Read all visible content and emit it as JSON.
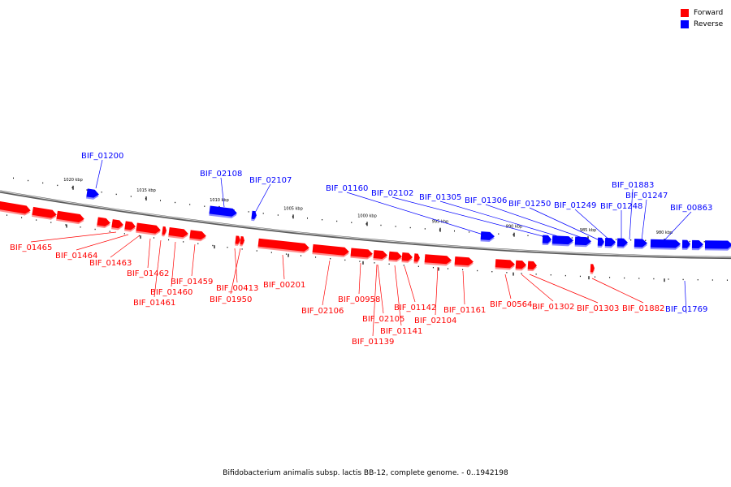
{
  "legend": {
    "items": [
      {
        "label": "Forward",
        "color": "#ff0000"
      },
      {
        "label": "Reverse",
        "color": "#0000ff"
      }
    ]
  },
  "caption": "Bifidobacterium animalis subsp. lactis BB-12, complete genome. - 0..1942198",
  "scale_labels": [
    "1020 kbp",
    "1015 kbp",
    "1010 kbp",
    "1005 kbp",
    "1000 kbp",
    "995 kbp",
    "990 kbp",
    "985 kbp",
    "980 kbp"
  ],
  "colors": {
    "forward": "#ff0000",
    "reverse": "#0000ff",
    "backbone": "#808080"
  },
  "genes": [
    {
      "label": "BIF_01465",
      "strand": "forward"
    },
    {
      "label": "BIF_01464",
      "strand": "forward"
    },
    {
      "label": "BIF_01463",
      "strand": "forward"
    },
    {
      "label": "BIF_01462",
      "strand": "forward"
    },
    {
      "label": "BIF_01461",
      "strand": "forward"
    },
    {
      "label": "BIF_01460",
      "strand": "forward"
    },
    {
      "label": "BIF_01459",
      "strand": "forward"
    },
    {
      "label": "BIF_00413",
      "strand": "forward"
    },
    {
      "label": "BIF_01950",
      "strand": "forward"
    },
    {
      "label": "BIF_00201",
      "strand": "forward"
    },
    {
      "label": "BIF_02106",
      "strand": "forward"
    },
    {
      "label": "BIF_00958",
      "strand": "forward"
    },
    {
      "label": "BIF_02105",
      "strand": "forward"
    },
    {
      "label": "BIF_01139",
      "strand": "forward"
    },
    {
      "label": "BIF_01141",
      "strand": "forward"
    },
    {
      "label": "BIF_01142",
      "strand": "forward"
    },
    {
      "label": "BIF_02104",
      "strand": "forward"
    },
    {
      "label": "BIF_01161",
      "strand": "forward"
    },
    {
      "label": "BIF_00564",
      "strand": "forward"
    },
    {
      "label": "BIF_01302",
      "strand": "forward"
    },
    {
      "label": "BIF_01303",
      "strand": "forward"
    },
    {
      "label": "BIF_01882",
      "strand": "forward"
    },
    {
      "label": "BIF_01200",
      "strand": "reverse"
    },
    {
      "label": "BIF_02108",
      "strand": "reverse"
    },
    {
      "label": "BIF_02107",
      "strand": "reverse"
    },
    {
      "label": "BIF_01160",
      "strand": "reverse"
    },
    {
      "label": "BIF_02102",
      "strand": "reverse"
    },
    {
      "label": "BIF_01305",
      "strand": "reverse"
    },
    {
      "label": "BIF_01306",
      "strand": "reverse"
    },
    {
      "label": "BIF_01250",
      "strand": "reverse"
    },
    {
      "label": "BIF_01249",
      "strand": "reverse"
    },
    {
      "label": "BIF_01248",
      "strand": "reverse"
    },
    {
      "label": "BIF_01883",
      "strand": "reverse"
    },
    {
      "label": "BIF_01247",
      "strand": "reverse"
    },
    {
      "label": "BIF_00863",
      "strand": "reverse"
    },
    {
      "label": "BIF_01769",
      "strand": "reverse"
    }
  ]
}
